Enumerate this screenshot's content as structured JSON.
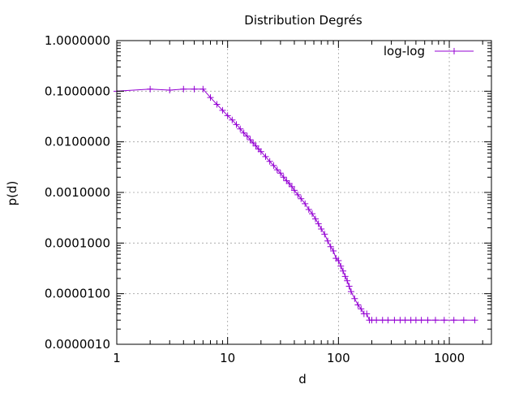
{
  "chart_data": {
    "type": "scatter",
    "title": "Distribution Degrés",
    "xlabel": "d",
    "ylabel": "p(d)",
    "x_scale": "log",
    "y_scale": "log",
    "xlim": [
      1,
      2400
    ],
    "ylim": [
      1e-06,
      1
    ],
    "x_ticks": [
      "1",
      "10",
      "100",
      "1000"
    ],
    "y_ticks": [
      "1.0000000",
      "0.1000000",
      "0.0100000",
      "0.0010000",
      "0.0001000",
      "0.0000100",
      "0.0000010"
    ],
    "grid": true,
    "legend_position": "top-right",
    "colors": {
      "series": "#9400d3",
      "grid": "#a0a0a0",
      "axes": "#000000"
    },
    "series": [
      {
        "name": "log-log",
        "points": [
          [
            1,
            0.1
          ],
          [
            2,
            0.11
          ],
          [
            3,
            0.105
          ],
          [
            4,
            0.11
          ],
          [
            5,
            0.11
          ],
          [
            6,
            0.11
          ],
          [
            7,
            0.075
          ],
          [
            8,
            0.055
          ],
          [
            9,
            0.042
          ],
          [
            10,
            0.033
          ],
          [
            11,
            0.027
          ],
          [
            12,
            0.022
          ],
          [
            13,
            0.018
          ],
          [
            14,
            0.015
          ],
          [
            15,
            0.013
          ],
          [
            16,
            0.011
          ],
          [
            17,
            0.0095
          ],
          [
            18,
            0.0083
          ],
          [
            19,
            0.0072
          ],
          [
            20,
            0.0064
          ],
          [
            22,
            0.0051
          ],
          [
            24,
            0.0041
          ],
          [
            26,
            0.0034
          ],
          [
            28,
            0.0028
          ],
          [
            30,
            0.0024
          ],
          [
            32,
            0.002
          ],
          [
            34,
            0.0017
          ],
          [
            36,
            0.0015
          ],
          [
            38,
            0.0013
          ],
          [
            40,
            0.0011
          ],
          [
            43,
            0.0009
          ],
          [
            46,
            0.00075
          ],
          [
            50,
            0.0006
          ],
          [
            54,
            0.00046
          ],
          [
            58,
            0.00038
          ],
          [
            62,
            0.0003
          ],
          [
            66,
            0.00024
          ],
          [
            70,
            0.00019
          ],
          [
            75,
            0.00015
          ],
          [
            80,
            0.00011
          ],
          [
            85,
            8.5e-05
          ],
          [
            90,
            7e-05
          ],
          [
            95,
            5e-05
          ],
          [
            100,
            4.5e-05
          ],
          [
            105,
            3.5e-05
          ],
          [
            110,
            2.8e-05
          ],
          [
            115,
            2.2e-05
          ],
          [
            120,
            1.8e-05
          ],
          [
            125,
            1.4e-05
          ],
          [
            130,
            1.1e-05
          ],
          [
            140,
            8e-06
          ],
          [
            150,
            6e-06
          ],
          [
            160,
            5e-06
          ],
          [
            170,
            4e-06
          ],
          [
            180,
            4e-06
          ],
          [
            190,
            3e-06
          ],
          [
            200,
            3e-06
          ],
          [
            220,
            3e-06
          ],
          [
            250,
            3e-06
          ],
          [
            280,
            3e-06
          ],
          [
            320,
            3e-06
          ],
          [
            360,
            3e-06
          ],
          [
            400,
            3e-06
          ],
          [
            450,
            3e-06
          ],
          [
            500,
            3e-06
          ],
          [
            560,
            3e-06
          ],
          [
            640,
            3e-06
          ],
          [
            750,
            3e-06
          ],
          [
            900,
            3e-06
          ],
          [
            1100,
            3e-06
          ],
          [
            1350,
            3e-06
          ],
          [
            1700,
            3e-06
          ]
        ]
      }
    ]
  }
}
